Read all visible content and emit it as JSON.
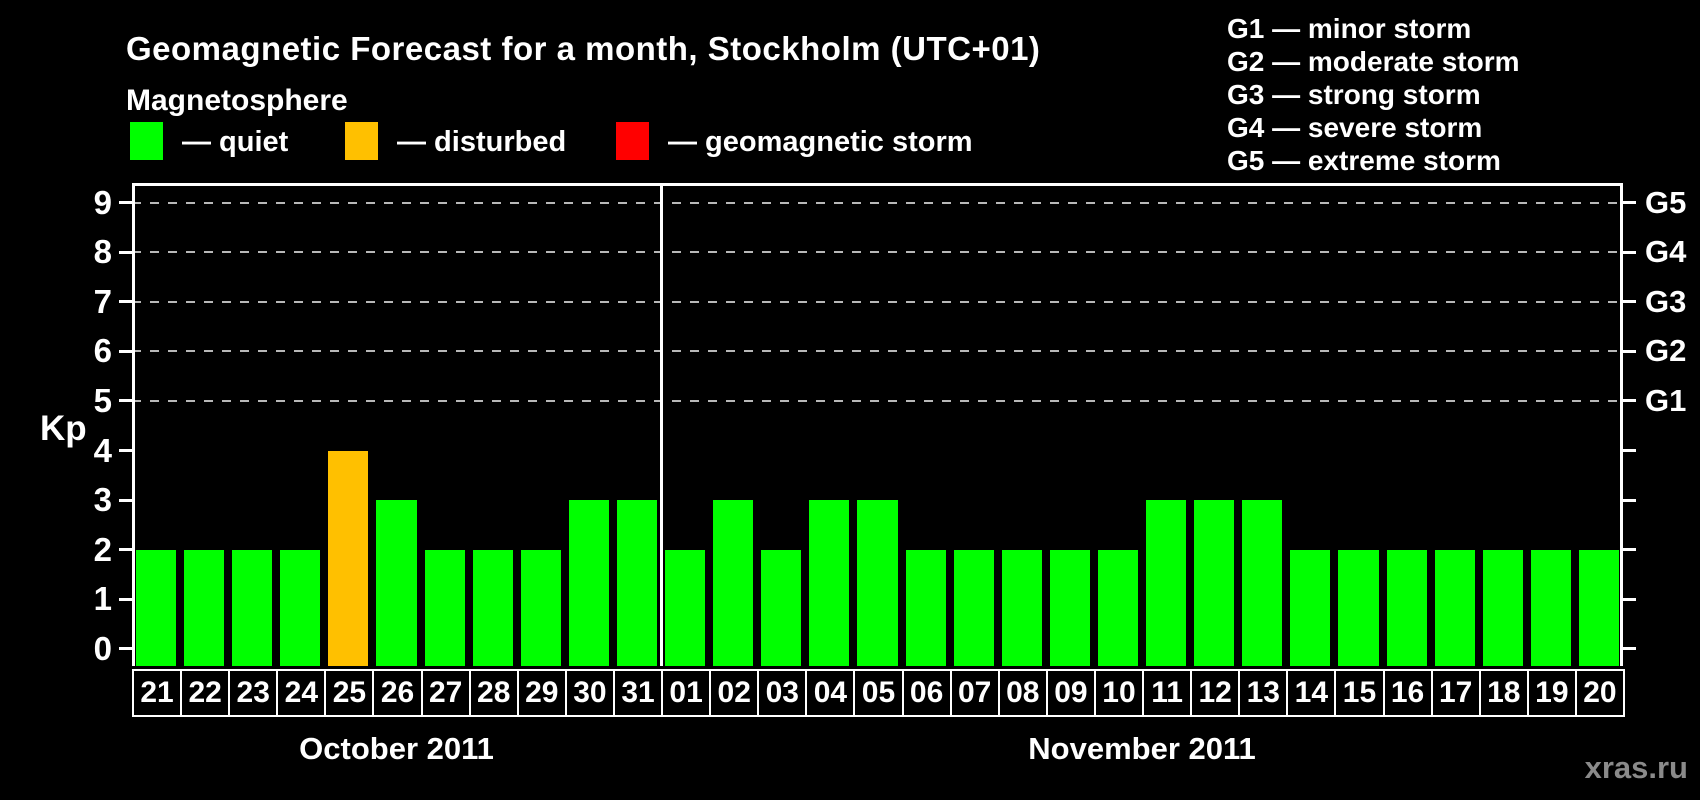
{
  "header": {
    "title": "Geomagnetic Forecast for a month, Stockholm (UTC+01)"
  },
  "legend": {
    "title": "Magnetosphere",
    "items": [
      {
        "name": "quiet",
        "label": "— quiet",
        "color": "#00ff00"
      },
      {
        "name": "disturbed",
        "label": "— disturbed",
        "color": "#ffc000"
      },
      {
        "name": "storm",
        "label": "— geomagnetic storm",
        "color": "#ff0000"
      }
    ]
  },
  "g_legend": {
    "items": [
      "G1 — minor storm",
      "G2 — moderate storm",
      "G3 — strong storm",
      "G4 — severe storm",
      "G5 — extreme storm"
    ]
  },
  "watermark": "xras.ru",
  "chart_data": {
    "type": "bar",
    "title": "Geomagnetic Forecast for a month, Stockholm (UTC+01)",
    "ylabel": "Kp",
    "ylim": [
      0,
      9
    ],
    "y_ticks": [
      0,
      1,
      2,
      3,
      4,
      5,
      6,
      7,
      8,
      9
    ],
    "gridlines_kp": [
      5,
      6,
      7,
      8,
      9
    ],
    "grid": "dashed horizontal at storm levels",
    "legend_position": "top",
    "right_axis": [
      {
        "label": "G1",
        "kp": 5
      },
      {
        "label": "G2",
        "kp": 6
      },
      {
        "label": "G3",
        "kp": 7
      },
      {
        "label": "G4",
        "kp": 8
      },
      {
        "label": "G5",
        "kp": 9
      }
    ],
    "colors": {
      "quiet": "#00ff00",
      "disturbed": "#ffc000",
      "storm": "#ff0000"
    },
    "months": [
      {
        "label": "October 2011",
        "days": [
          {
            "day": "21",
            "kp": 2,
            "state": "quiet"
          },
          {
            "day": "22",
            "kp": 2,
            "state": "quiet"
          },
          {
            "day": "23",
            "kp": 2,
            "state": "quiet"
          },
          {
            "day": "24",
            "kp": 2,
            "state": "quiet"
          },
          {
            "day": "25",
            "kp": 4,
            "state": "disturbed"
          },
          {
            "day": "26",
            "kp": 3,
            "state": "quiet"
          },
          {
            "day": "27",
            "kp": 2,
            "state": "quiet"
          },
          {
            "day": "28",
            "kp": 2,
            "state": "quiet"
          },
          {
            "day": "29",
            "kp": 2,
            "state": "quiet"
          },
          {
            "day": "30",
            "kp": 3,
            "state": "quiet"
          },
          {
            "day": "31",
            "kp": 3,
            "state": "quiet"
          }
        ]
      },
      {
        "label": "November 2011",
        "days": [
          {
            "day": "01",
            "kp": 2,
            "state": "quiet"
          },
          {
            "day": "02",
            "kp": 3,
            "state": "quiet"
          },
          {
            "day": "03",
            "kp": 2,
            "state": "quiet"
          },
          {
            "day": "04",
            "kp": 3,
            "state": "quiet"
          },
          {
            "day": "05",
            "kp": 3,
            "state": "quiet"
          },
          {
            "day": "06",
            "kp": 2,
            "state": "quiet"
          },
          {
            "day": "07",
            "kp": 2,
            "state": "quiet"
          },
          {
            "day": "08",
            "kp": 2,
            "state": "quiet"
          },
          {
            "day": "09",
            "kp": 2,
            "state": "quiet"
          },
          {
            "day": "10",
            "kp": 2,
            "state": "quiet"
          },
          {
            "day": "11",
            "kp": 3,
            "state": "quiet"
          },
          {
            "day": "12",
            "kp": 3,
            "state": "quiet"
          },
          {
            "day": "13",
            "kp": 3,
            "state": "quiet"
          },
          {
            "day": "14",
            "kp": 2,
            "state": "quiet"
          },
          {
            "day": "15",
            "kp": 2,
            "state": "quiet"
          },
          {
            "day": "16",
            "kp": 2,
            "state": "quiet"
          },
          {
            "day": "17",
            "kp": 2,
            "state": "quiet"
          },
          {
            "day": "18",
            "kp": 2,
            "state": "quiet"
          },
          {
            "day": "19",
            "kp": 2,
            "state": "quiet"
          },
          {
            "day": "20",
            "kp": 2,
            "state": "quiet"
          }
        ]
      }
    ]
  }
}
